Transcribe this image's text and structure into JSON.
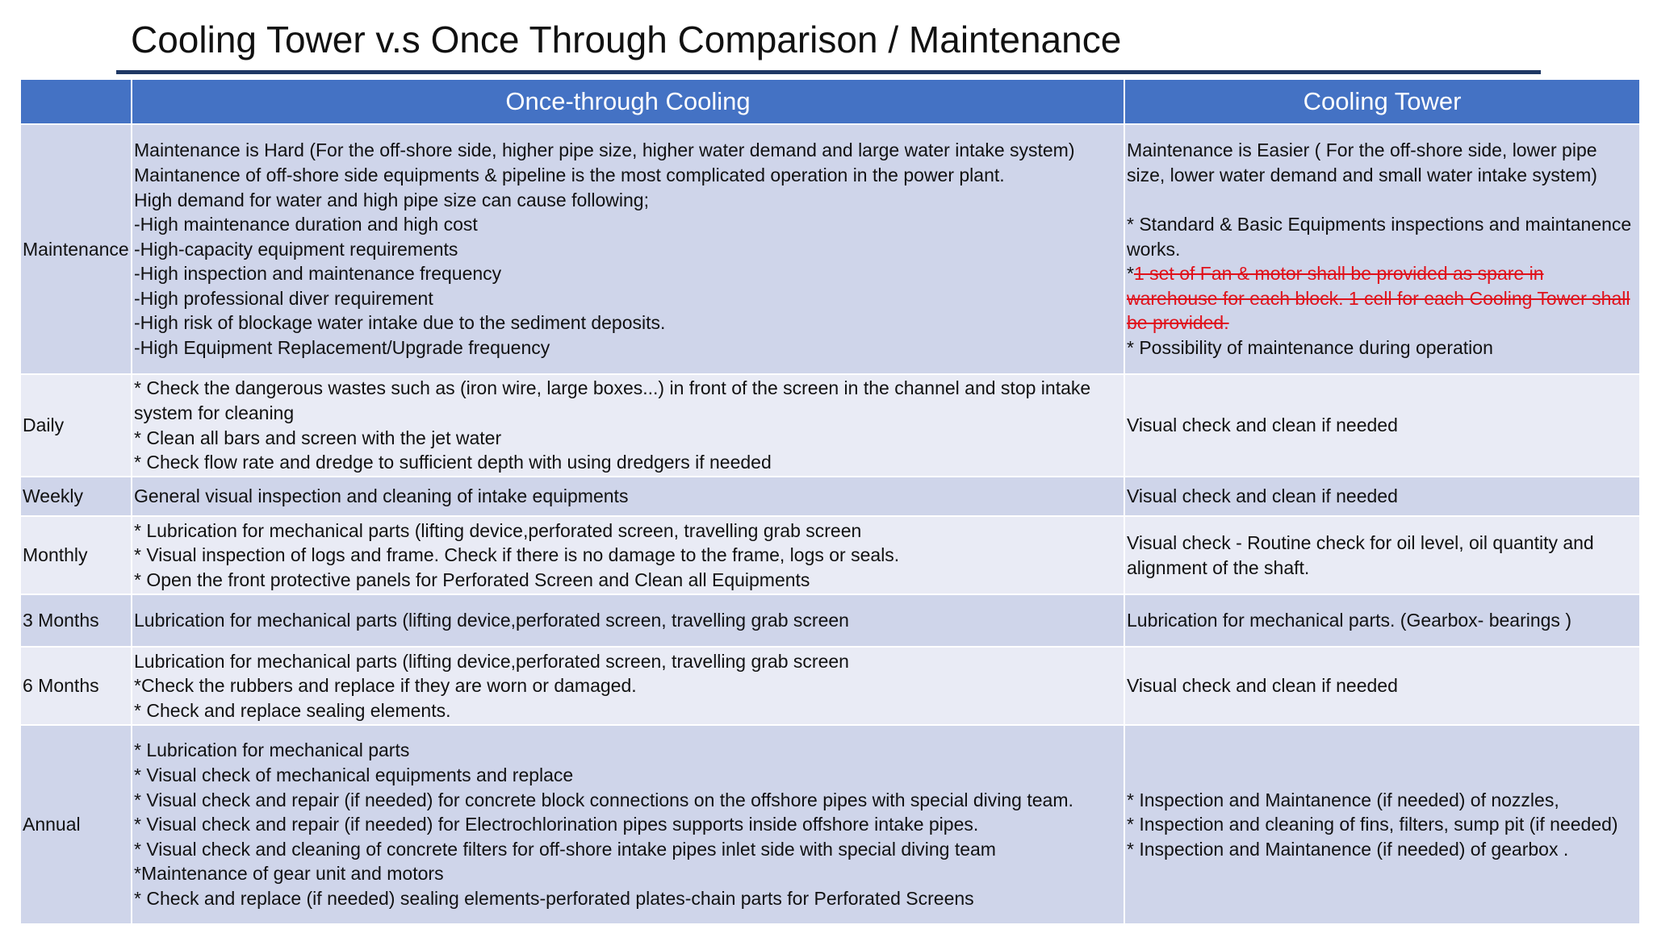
{
  "header": {
    "title": "Cooling Tower v.s Once Through Comparison / Maintenance"
  },
  "table": {
    "columns": [
      "Once-through Cooling",
      "Cooling Tower"
    ],
    "rows": [
      {
        "label": "Maintenance",
        "once_through": [
          "Maintenance is Hard (For the off-shore side, higher pipe size,  higher water demand and large water intake system)",
          "Maintanence of off-shore side equipments & pipeline is the most complicated operation in the power plant.",
          "High demand for water and high pipe size can cause following;",
          "-High maintenance duration and high cost",
          "-High-capacity equipment requirements",
          "-High inspection and maintenance frequency",
          "-High professional diver requirement",
          "-High risk of blockage water intake due to the sediment deposits.",
          "-High Equipment Replacement/Upgrade frequency"
        ],
        "cooling_tower": [
          "Maintenance is Easier ( For the off-shore side, lower pipe size,  lower water demand and small water intake system)",
          "* Standard & Basic Equipments inspections and maintanence works.",
          {
            "prefix": "*",
            "struck": "1 set of Fan & motor shall be provided as spare in warehouse for each block. 1 cell for each Cooling Tower shall be provided."
          },
          "* Possibility of maintenance during operation"
        ]
      },
      {
        "label": "Daily",
        "once_through": [
          "* Check the dangerous wastes such as (iron wire, large boxes...) in front of the screen in the channel and stop intake system for cleaning",
          "* Clean all bars and screen with the jet water",
          "* Check flow rate and dredge to sufficient depth  with using dredgers if needed"
        ],
        "cooling_tower": [
          "Visual check and clean if needed"
        ]
      },
      {
        "label": "Weekly",
        "once_through": [
          "General visual inspection and cleaning of intake equipments"
        ],
        "cooling_tower": [
          "Visual check and clean if needed"
        ]
      },
      {
        "label": "Monthly",
        "once_through": [
          "* Lubrication for mechanical parts (lifting device,perforated screen, travelling grab screen",
          "* Visual inspection of logs and frame. Check if there is no damage to the frame, logs or seals.",
          "* Open the front protective panels for Perforated Screen and Clean all Equipments"
        ],
        "cooling_tower": [
          "Visual check - Routine check for oil level, oil quantity and alignment of the shaft."
        ]
      },
      {
        "label": "3 Months",
        "once_through": [
          "Lubrication for mechanical parts (lifting device,perforated screen, travelling grab screen"
        ],
        "cooling_tower": [
          "Lubrication for mechanical parts. (Gearbox- bearings )"
        ]
      },
      {
        "label": "6 Months",
        "once_through": [
          "Lubrication for mechanical parts (lifting device,perforated screen, travelling grab screen",
          "*Check the rubbers and replace if they are worn or damaged.",
          "* Check and replace sealing elements."
        ],
        "cooling_tower": [
          "Visual check and clean if needed"
        ]
      },
      {
        "label": "Annual",
        "once_through": [
          "* Lubrication for mechanical parts",
          "* Visual check of mechanical equipments and replace",
          "* Visual check and repair (if needed) for concrete block connections on the offshore pipes with special diving team.",
          "* Visual check and repair (if needed) for Electrochlorination pipes supports inside offshore intake pipes.",
          "* Visual check and cleaning of concrete filters for off-shore intake pipes inlet side with special diving team",
          "*Maintenance of gear unit and motors",
          "* Check and replace (if needed) sealing elements-perforated plates-chain parts for Perforated Screens"
        ],
        "cooling_tower": [
          "* Inspection and Maintanence (if needed) of nozzles,",
          "* Inspection and cleaning of fins, filters, sump pit (if needed)",
          "* Inspection and Maintanence (if needed) of  gearbox ."
        ]
      }
    ]
  }
}
